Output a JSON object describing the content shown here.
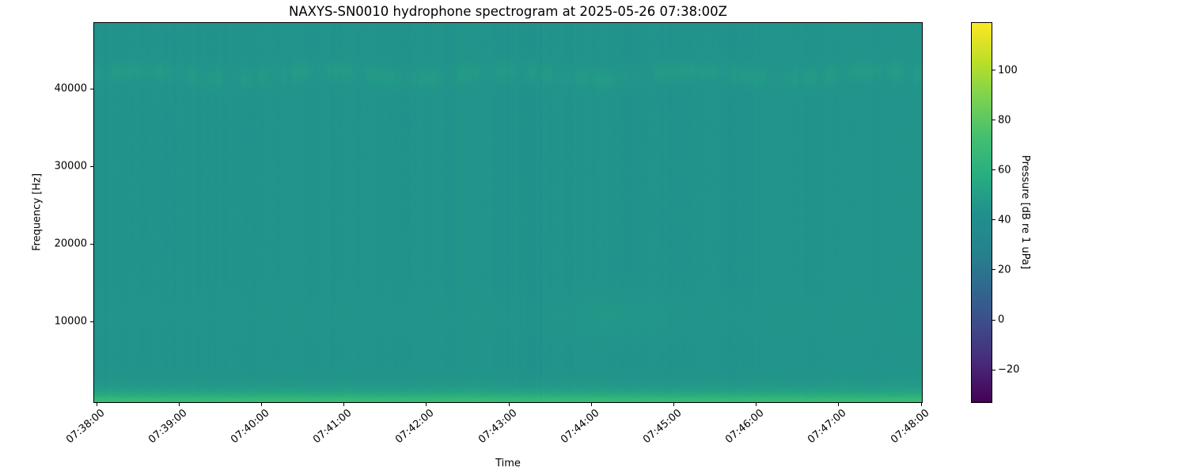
{
  "chart_data": {
    "type": "heatmap",
    "subtype": "spectrogram",
    "title": "NAXYS-SN0010 hydrophone spectrogram at 2025-05-26 07:38:00Z",
    "xlabel": "Time",
    "ylabel": "Frequency [Hz]",
    "x_tick_labels": [
      "07:38:00",
      "07:39:00",
      "07:40:00",
      "07:41:00",
      "07:42:00",
      "07:43:00",
      "07:44:00",
      "07:45:00",
      "07:46:00",
      "07:47:00",
      "07:48:00"
    ],
    "y_ticks": [
      {
        "value": 10000,
        "label": "10000"
      },
      {
        "value": 20000,
        "label": "20000"
      },
      {
        "value": 30000,
        "label": "30000"
      },
      {
        "value": 40000,
        "label": "40000"
      }
    ],
    "ylim": [
      -400,
      48500
    ],
    "grid": false,
    "colormap": "viridis",
    "colormap_stops": [
      [
        0.0,
        "#440154"
      ],
      [
        0.1,
        "#482878"
      ],
      [
        0.2,
        "#3e4a89"
      ],
      [
        0.3,
        "#31688e"
      ],
      [
        0.4,
        "#26828e"
      ],
      [
        0.5,
        "#21918c"
      ],
      [
        0.6,
        "#28ae80"
      ],
      [
        0.7,
        "#44bf70"
      ],
      [
        0.8,
        "#7ad151"
      ],
      [
        0.9,
        "#bddf26"
      ],
      [
        1.0,
        "#fde725"
      ]
    ],
    "colorbar": {
      "label": "Pressure [dB re 1 uPa]",
      "clim": [
        -33,
        119
      ],
      "ticks": [
        {
          "value": 100,
          "label": "100"
        },
        {
          "value": 80,
          "label": "80"
        },
        {
          "value": 60,
          "label": "60"
        },
        {
          "value": 40,
          "label": "40"
        },
        {
          "value": 20,
          "label": "20"
        },
        {
          "value": 0,
          "label": "0"
        },
        {
          "value": -20,
          "label": "−20"
        }
      ]
    },
    "field": {
      "background_db": 44.5,
      "column_noise_db": 2.2,
      "pixel_noise_db": 1.0,
      "dark_line_x_fraction": 0.539,
      "dark_line_db": -1.8,
      "bands": [
        {
          "name": "low-frequency-broadband",
          "shape": "exp",
          "peak_db": 23,
          "scale_hz": 900
        },
        {
          "name": "high-frequency-band",
          "shape": "gauss",
          "peak_db": 4,
          "center_hz": 41800,
          "sigma_hz": 1300,
          "blotchy": true
        },
        {
          "name": "mid-frequency-patches",
          "shape": "gauss",
          "peak_db": 2,
          "center_hz": 10500,
          "sigma_hz": 3000,
          "patchy": true
        }
      ]
    }
  }
}
